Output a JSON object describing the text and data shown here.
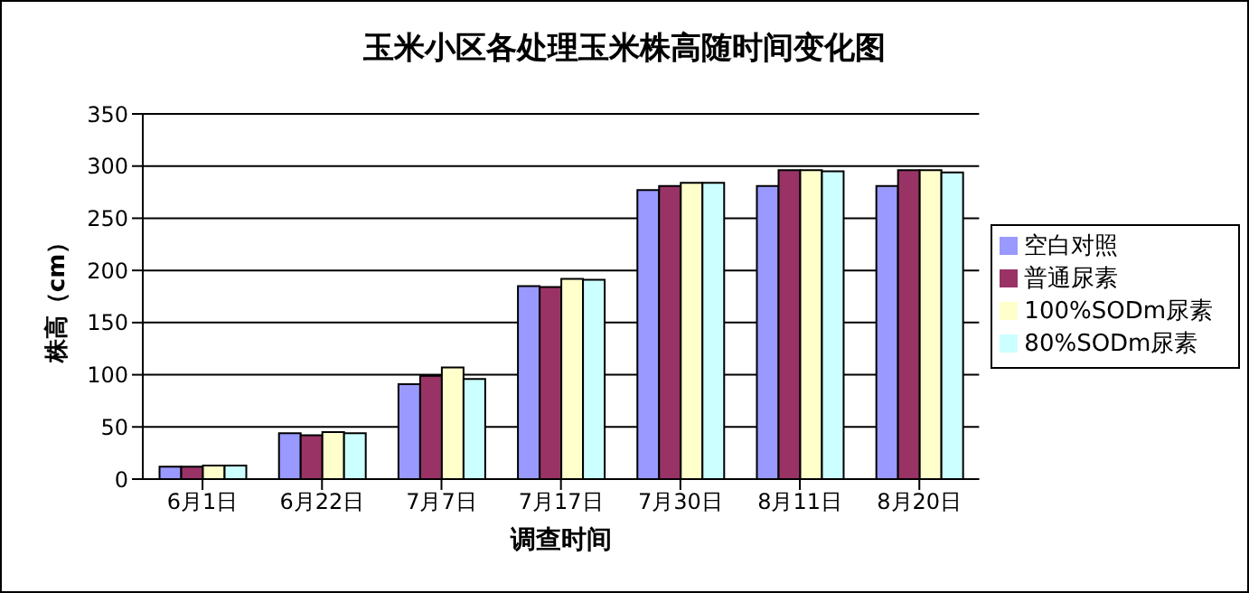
{
  "chart_data": {
    "type": "bar",
    "title": "玉米小区各处理玉米株高随时间变化图",
    "xlabel": "调查时间",
    "ylabel": "株高（cm）",
    "categories": [
      "6月1日",
      "6月22日",
      "7月7日",
      "7月17日",
      "7月30日",
      "8月11日",
      "8月20日"
    ],
    "series": [
      {
        "name": "空白对照",
        "color": "#9999ff",
        "values": [
          12,
          44,
          91,
          185,
          277,
          281,
          281
        ]
      },
      {
        "name": "普通尿素",
        "color": "#993366",
        "values": [
          12,
          42,
          99,
          184,
          281,
          296,
          296
        ]
      },
      {
        "name": "100%SODm尿素",
        "color": "#ffffcc",
        "values": [
          13,
          45,
          107,
          192,
          284,
          296,
          296
        ]
      },
      {
        "name": "80%SODm尿素",
        "color": "#ccffff",
        "values": [
          13,
          44,
          96,
          191,
          284,
          295,
          294
        ]
      }
    ],
    "ylim": [
      0,
      350
    ],
    "yticks": [
      0,
      50,
      100,
      150,
      200,
      250,
      300,
      350
    ],
    "grid": "y",
    "legend": "right"
  }
}
